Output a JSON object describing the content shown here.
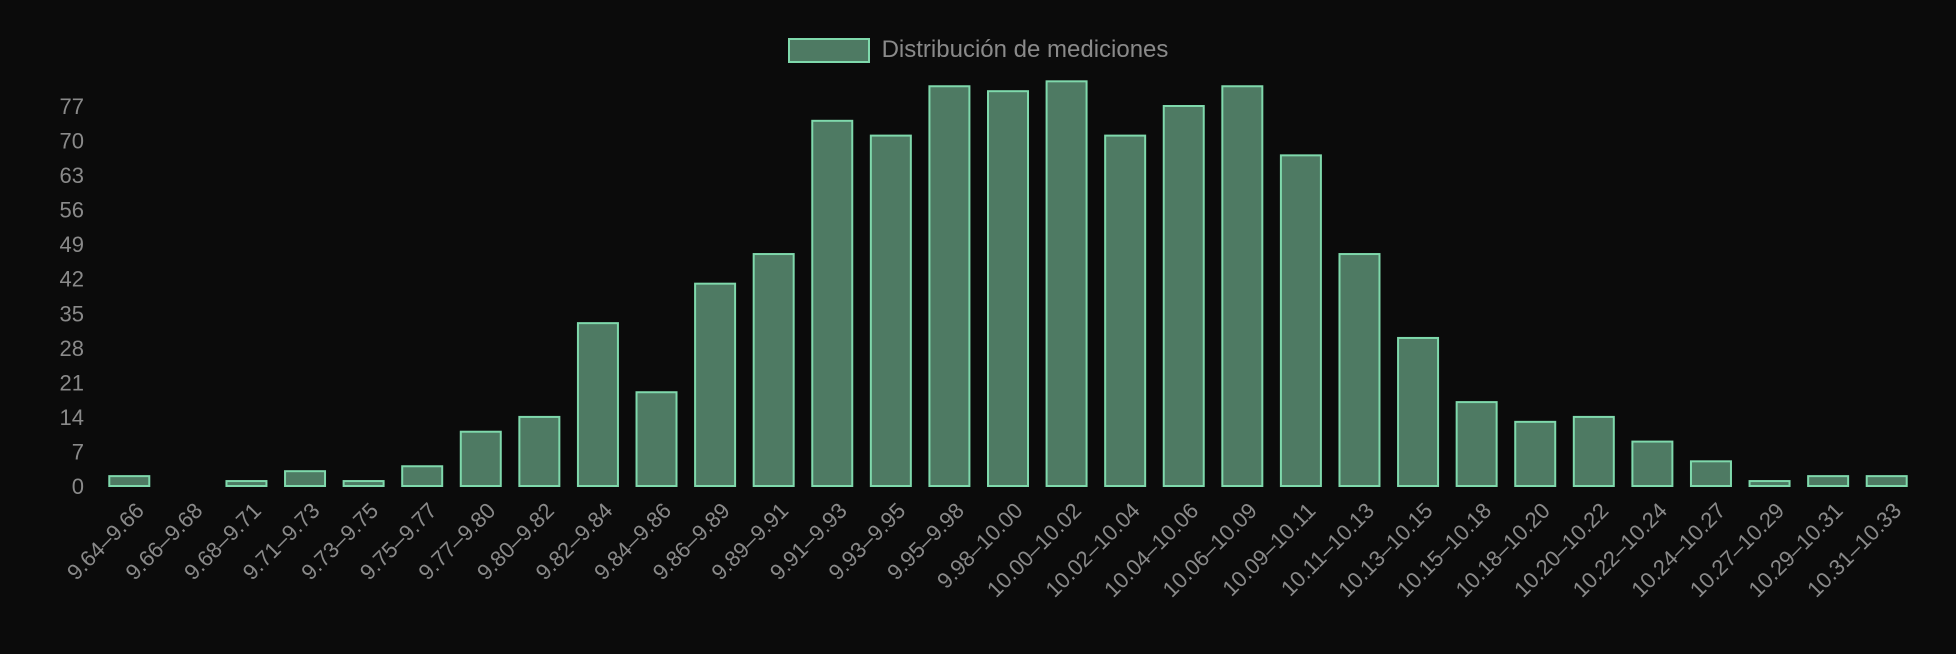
{
  "chart_data": {
    "type": "bar",
    "legend": "Distribución de mediciones",
    "categories": [
      "9.64–9.66",
      "9.66–9.68",
      "9.68–9.71",
      "9.71–9.73",
      "9.73–9.75",
      "9.75–9.77",
      "9.77–9.80",
      "9.80–9.82",
      "9.82–9.84",
      "9.84–9.86",
      "9.86–9.89",
      "9.89–9.91",
      "9.91–9.93",
      "9.93–9.95",
      "9.95–9.98",
      "9.98–10.00",
      "10.00–10.02",
      "10.02–10.04",
      "10.04–10.06",
      "10.06–10.09",
      "10.09–10.11",
      "10.11–10.13",
      "10.13–10.15",
      "10.15–10.18",
      "10.18–10.20",
      "10.20–10.22",
      "10.22–10.24",
      "10.24–10.27",
      "10.27–10.29",
      "10.29–10.31",
      "10.31–10.33"
    ],
    "values": [
      2,
      0,
      1,
      3,
      1,
      4,
      11,
      14,
      33,
      19,
      41,
      47,
      74,
      71,
      81,
      80,
      82,
      71,
      77,
      81,
      67,
      47,
      30,
      17,
      13,
      14,
      9,
      5,
      1,
      2,
      2
    ],
    "yticks": [
      0,
      7,
      14,
      21,
      28,
      35,
      42,
      49,
      56,
      63,
      70,
      77
    ],
    "ylim": [
      0,
      84
    ],
    "bar_fill": "#4e7a63",
    "bar_stroke": "#7fd9ac",
    "background": "#0b0b0b",
    "legend_position": "top-center",
    "grid": false
  }
}
